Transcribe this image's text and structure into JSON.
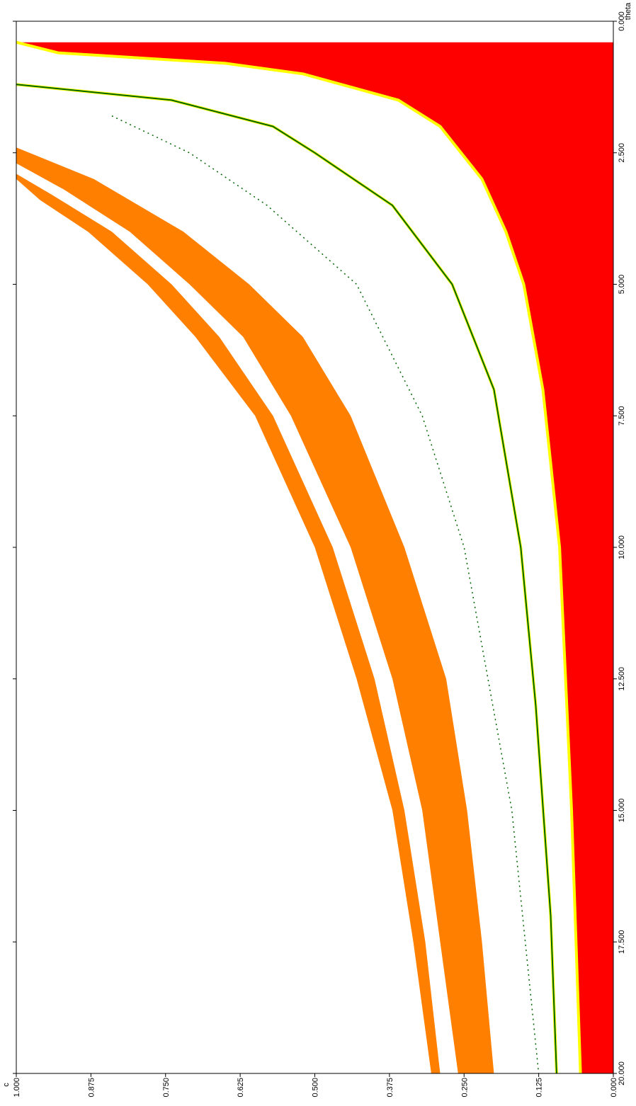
{
  "chart_data": {
    "type": "area",
    "axis_labels": {
      "c": "c",
      "theta": "theta"
    },
    "theta_ticks": [
      "0.000",
      "2.500",
      "5.000",
      "7.500",
      "10.000",
      "12.500",
      "15.000",
      "17.500",
      "20.000"
    ],
    "c_ticks": [
      "0.000",
      "0.125",
      "0.250",
      "0.375",
      "0.500",
      "0.625",
      "0.750",
      "0.875",
      "1.000"
    ],
    "theta_range": [
      0,
      20
    ],
    "c_range": [
      0,
      1
    ],
    "grid": false,
    "regions": [
      {
        "color": "#ff0000",
        "shape": "area-below-curve",
        "boundary": [
          [
            0.4,
            1.0
          ],
          [
            0.6,
            0.93
          ],
          [
            0.8,
            0.65
          ],
          [
            1.0,
            0.52
          ],
          [
            1.5,
            0.36
          ],
          [
            2.0,
            0.29
          ],
          [
            3.0,
            0.22
          ],
          [
            4.0,
            0.18
          ],
          [
            5.0,
            0.15
          ],
          [
            7.0,
            0.118
          ],
          [
            10.0,
            0.09
          ],
          [
            15.0,
            0.07
          ],
          [
            20.0,
            0.055
          ]
        ]
      },
      {
        "color": "#ffff00",
        "shape": "thin-band",
        "boundary": [
          [
            0.4,
            1.0
          ],
          [
            0.6,
            0.93
          ],
          [
            0.8,
            0.65
          ],
          [
            1.0,
            0.52
          ],
          [
            1.5,
            0.36
          ],
          [
            2.0,
            0.29
          ],
          [
            3.0,
            0.22
          ],
          [
            4.0,
            0.18
          ],
          [
            5.0,
            0.15
          ],
          [
            7.0,
            0.118
          ],
          [
            10.0,
            0.09
          ],
          [
            15.0,
            0.07
          ],
          [
            20.0,
            0.055
          ]
        ]
      },
      {
        "color": "#ffff00",
        "shape": "thin-band",
        "boundary": [
          [
            1.2,
            1.0
          ],
          [
            1.5,
            0.74
          ],
          [
            2.0,
            0.57
          ],
          [
            2.5,
            0.5
          ],
          [
            3.5,
            0.37
          ],
          [
            5.0,
            0.27
          ],
          [
            7.0,
            0.2
          ],
          [
            10.0,
            0.155
          ],
          [
            13.0,
            0.13
          ],
          [
            17.0,
            0.105
          ],
          [
            20.0,
            0.095
          ]
        ]
      },
      {
        "color": "#006400",
        "shape": "line",
        "boundary": [
          [
            1.2,
            1.0
          ],
          [
            1.5,
            0.74
          ],
          [
            2.0,
            0.57
          ],
          [
            2.5,
            0.5
          ],
          [
            3.5,
            0.37
          ],
          [
            5.0,
            0.27
          ],
          [
            7.0,
            0.2
          ],
          [
            10.0,
            0.155
          ],
          [
            13.0,
            0.13
          ],
          [
            17.0,
            0.105
          ],
          [
            20.0,
            0.095
          ]
        ]
      },
      {
        "color": "#006400",
        "shape": "dotted-line",
        "boundary": [
          [
            1.8,
            0.84
          ],
          [
            2.5,
            0.71
          ],
          [
            3.5,
            0.58
          ],
          [
            5.0,
            0.43
          ],
          [
            7.5,
            0.32
          ],
          [
            10.0,
            0.25
          ],
          [
            15.0,
            0.17
          ],
          [
            20.0,
            0.125
          ]
        ]
      },
      {
        "color": "#ff8000",
        "shape": "band",
        "lower": [
          [
            2.4,
            1.0
          ],
          [
            3.0,
            0.87
          ],
          [
            4.0,
            0.72
          ],
          [
            5.0,
            0.61
          ],
          [
            6.0,
            0.52
          ],
          [
            7.5,
            0.44
          ],
          [
            10.0,
            0.35
          ],
          [
            12.5,
            0.28
          ],
          [
            15.0,
            0.245
          ],
          [
            17.5,
            0.22
          ],
          [
            20.0,
            0.2
          ]
        ],
        "upper": [
          [
            2.7,
            1.0
          ],
          [
            3.2,
            0.92
          ],
          [
            4.0,
            0.81
          ],
          [
            5.0,
            0.71
          ],
          [
            6.0,
            0.62
          ],
          [
            7.5,
            0.54
          ],
          [
            10.0,
            0.44
          ],
          [
            12.5,
            0.37
          ],
          [
            15.0,
            0.32
          ],
          [
            17.5,
            0.29
          ],
          [
            20.0,
            0.26
          ]
        ]
      },
      {
        "color": "#ff8000",
        "shape": "band",
        "lower": [
          [
            2.9,
            1.0
          ],
          [
            3.3,
            0.94
          ],
          [
            4.0,
            0.84
          ],
          [
            5.0,
            0.74
          ],
          [
            6.0,
            0.66
          ],
          [
            7.5,
            0.57
          ],
          [
            10.0,
            0.47
          ],
          [
            12.5,
            0.4
          ],
          [
            15.0,
            0.35
          ],
          [
            17.5,
            0.315
          ],
          [
            20.0,
            0.29
          ]
        ],
        "upper": [
          [
            3.0,
            1.0
          ],
          [
            3.4,
            0.96
          ],
          [
            4.0,
            0.88
          ],
          [
            5.0,
            0.78
          ],
          [
            6.0,
            0.7
          ],
          [
            7.5,
            0.6
          ],
          [
            10.0,
            0.5
          ],
          [
            12.5,
            0.43
          ],
          [
            15.0,
            0.37
          ],
          [
            17.5,
            0.335
          ],
          [
            20.0,
            0.305
          ]
        ]
      }
    ]
  }
}
